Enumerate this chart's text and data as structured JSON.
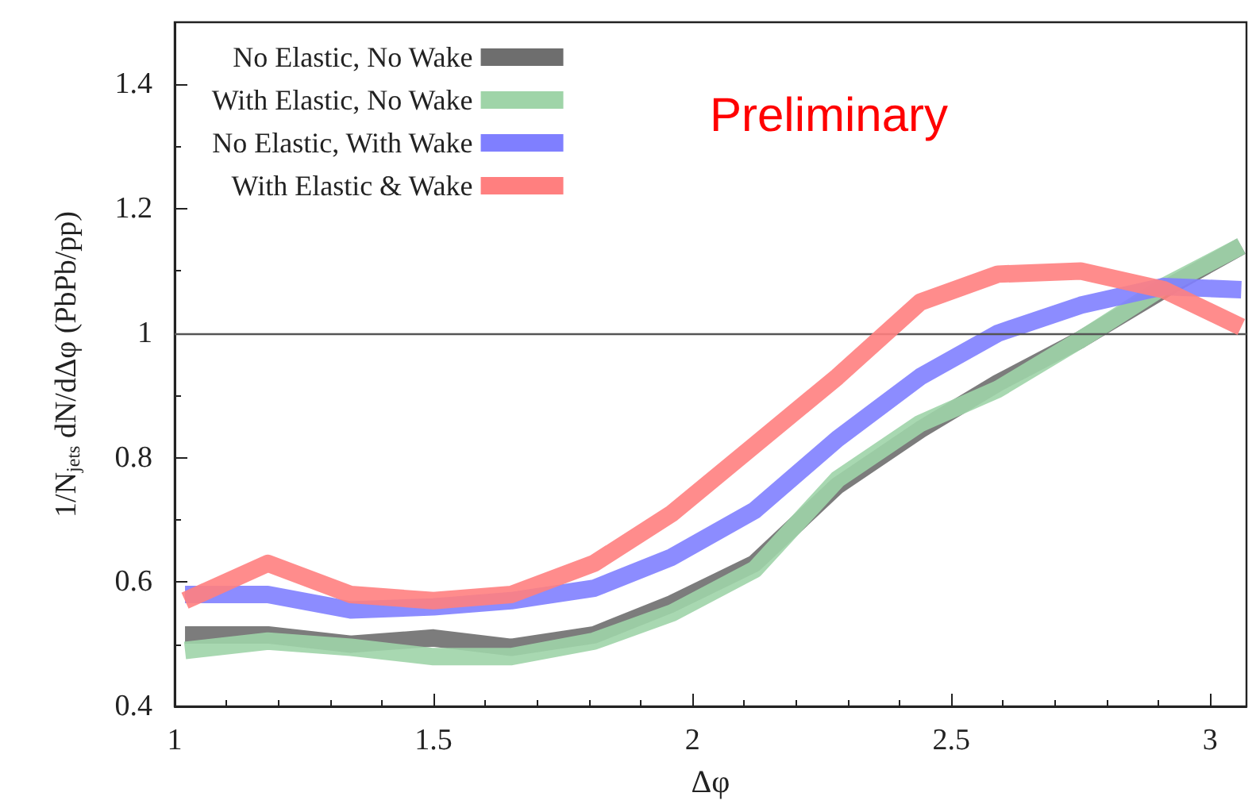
{
  "chart_data": {
    "type": "line",
    "xlabel": "Δφ",
    "ylabel": "1/N$_{jets}$ dN/dΔφ (PbPb/pp)",
    "x": [
      1.02,
      1.18,
      1.34,
      1.5,
      1.65,
      1.81,
      1.96,
      2.12,
      2.28,
      2.44,
      2.59,
      2.75,
      2.91,
      3.06
    ],
    "series": [
      {
        "name": "No Elastic, No Wake",
        "color": "#6e6e6e",
        "values": [
          0.515,
          0.515,
          0.5,
          0.51,
          0.495,
          0.515,
          0.565,
          0.63,
          0.755,
          0.845,
          0.92,
          0.99,
          1.07,
          1.14
        ]
      },
      {
        "name": "With Elastic, No Wake",
        "color": "#9fd4a8",
        "values": [
          0.49,
          0.505,
          0.495,
          0.48,
          0.48,
          0.505,
          0.55,
          0.62,
          0.765,
          0.855,
          0.91,
          0.99,
          1.075,
          1.14
        ]
      },
      {
        "name": "No Elastic, With Wake",
        "color": "#7f7fff",
        "values": [
          0.58,
          0.58,
          0.555,
          0.56,
          0.57,
          0.59,
          0.64,
          0.715,
          0.83,
          0.93,
          1.0,
          1.045,
          1.075,
          1.07
        ]
      },
      {
        "name": "With Elastic & Wake",
        "color": "#ff7f7f",
        "values": [
          0.57,
          0.63,
          0.58,
          0.57,
          0.58,
          0.63,
          0.71,
          0.82,
          0.93,
          1.05,
          1.095,
          1.1,
          1.07,
          1.01
        ]
      }
    ],
    "xlim": [
      1,
      3.07
    ],
    "xticks": [
      1,
      1.5,
      2,
      2.5,
      3
    ],
    "ylim": [
      0.4,
      1.5
    ],
    "yticks": [
      0.4,
      0.6,
      0.8,
      1,
      1.2,
      1.4
    ],
    "ref_lines": [
      {
        "axis": "y",
        "value": 1,
        "color": "#555555"
      }
    ],
    "annotations": [
      "Preliminary"
    ],
    "legend": "top left",
    "grid": false,
    "marker": "none",
    "line_style": "solid"
  }
}
